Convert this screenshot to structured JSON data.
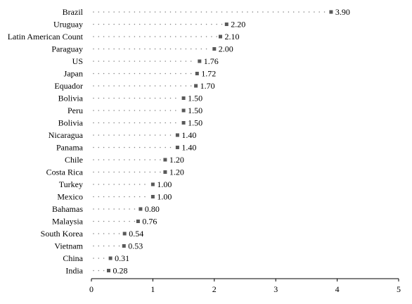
{
  "chart_data": {
    "type": "dot",
    "title": "",
    "xlabel": "",
    "ylabel": "",
    "xlim": [
      0,
      5
    ],
    "xticks": [
      0,
      1,
      2,
      3,
      4,
      5
    ],
    "grid": false,
    "categories": [
      "Brazil",
      "Uruguay",
      "Latin American Count",
      "Paraguay",
      "US",
      "Japan",
      "Equador",
      "Bolivia",
      "Peru",
      "Bolivia",
      "Nicaragua",
      "Panama",
      "Chile",
      "Costa Rica",
      "Turkey",
      "Mexico",
      "Bahamas",
      "Malaysia",
      "South Korea",
      "Vietnam",
      "China",
      "India"
    ],
    "values": [
      3.9,
      2.2,
      2.1,
      2.0,
      1.76,
      1.72,
      1.7,
      1.5,
      1.5,
      1.5,
      1.4,
      1.4,
      1.2,
      1.2,
      1.0,
      1.0,
      0.8,
      0.76,
      0.54,
      0.53,
      0.31,
      0.28
    ],
    "value_labels": [
      "3.90",
      "2.20",
      "2.10",
      "2.00",
      "1.76",
      "1.72",
      "1.70",
      "1.50",
      "1.50",
      "1.50",
      "1.40",
      "1.40",
      "1.20",
      "1.20",
      "1.00",
      "1.00",
      "0.80",
      "0.76",
      "0.54",
      "0.53",
      "0.31",
      "0.28"
    ],
    "marker_color": "#595959",
    "leader_color": "#808080",
    "axis_color": "#000000"
  }
}
